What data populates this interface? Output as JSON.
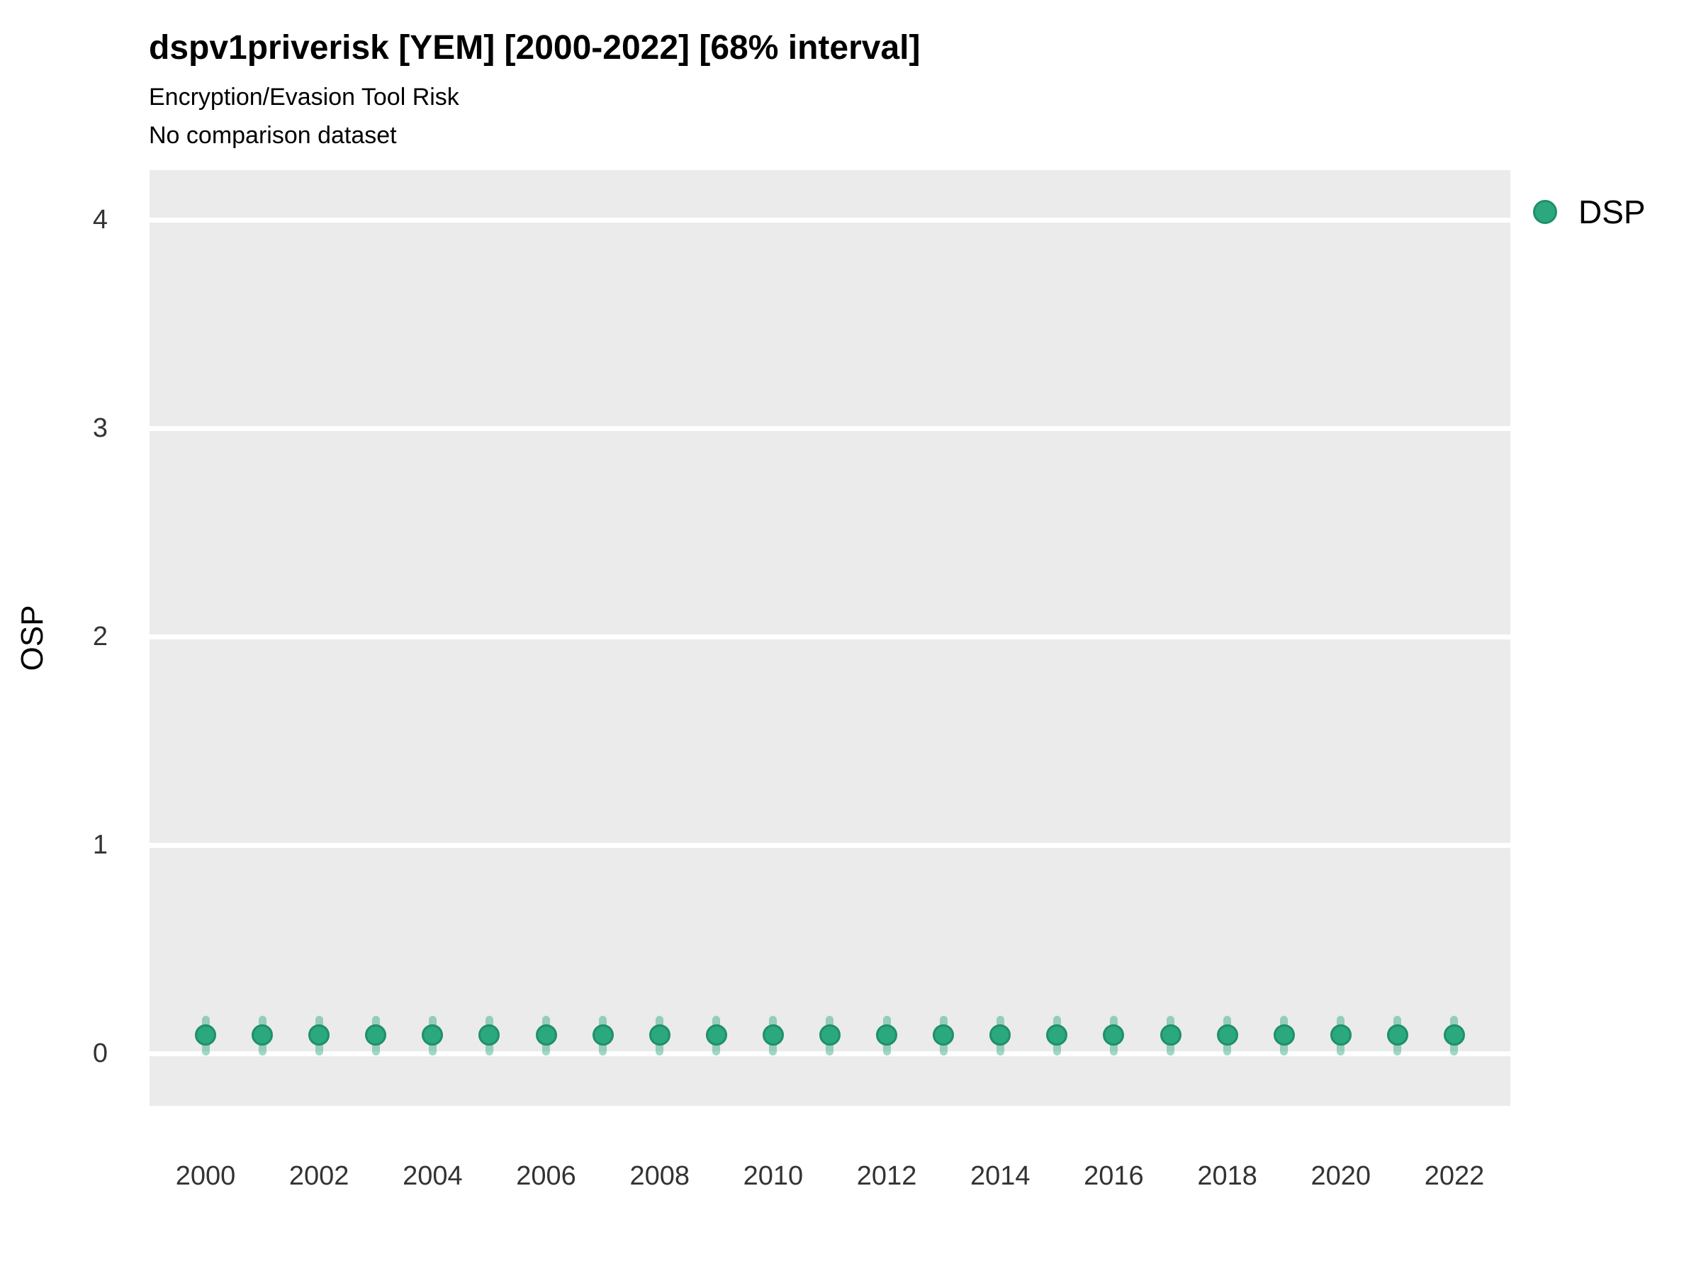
{
  "header": {
    "title": "dspv1priverisk [YEM] [2000-2022] [68% interval]",
    "subtitle": "Encryption/Evasion Tool Risk",
    "note": "No comparison dataset"
  },
  "legend": {
    "items": [
      {
        "label": "DSP",
        "color": "#2BA87E"
      }
    ]
  },
  "colors": {
    "point_fill": "#2BA87E",
    "point_stroke": "#1F9066",
    "interval_fill": "rgba(44,168,126,0.45)",
    "panel_background": "#EBEBEB",
    "gridline": "#FFFFFF",
    "tick_text": "#333333",
    "title_text": "#000000"
  },
  "chart_data": {
    "type": "scatter",
    "title": "dspv1priverisk [YEM] [2000-2022] [68% interval]",
    "subtitle": "Encryption/Evasion Tool Risk",
    "annotation": "No comparison dataset",
    "xlabel": "",
    "ylabel": "OSP",
    "interval_label": "68% interval",
    "grid": "horizontal-major-only",
    "legend_position": "right-top",
    "ylim": [
      -0.25,
      4.25
    ],
    "yticks": [
      0,
      1,
      2,
      3,
      4
    ],
    "xticks": [
      2000,
      2002,
      2004,
      2006,
      2008,
      2010,
      2012,
      2014,
      2016,
      2018,
      2020,
      2022
    ],
    "x": [
      2000,
      2001,
      2002,
      2003,
      2004,
      2005,
      2006,
      2007,
      2008,
      2009,
      2010,
      2011,
      2012,
      2013,
      2014,
      2015,
      2016,
      2017,
      2018,
      2019,
      2020,
      2021,
      2022
    ],
    "series": [
      {
        "name": "DSP",
        "values": [
          0.09,
          0.09,
          0.09,
          0.09,
          0.09,
          0.09,
          0.09,
          0.09,
          0.09,
          0.09,
          0.09,
          0.09,
          0.09,
          0.09,
          0.09,
          0.09,
          0.09,
          0.09,
          0.09,
          0.09,
          0.09,
          0.09,
          0.09
        ],
        "lower": [
          0.01,
          0.01,
          0.01,
          0.01,
          0.01,
          0.01,
          0.01,
          0.01,
          0.01,
          0.01,
          0.01,
          0.01,
          0.01,
          0.01,
          0.01,
          0.01,
          0.01,
          0.01,
          0.01,
          0.01,
          0.01,
          0.01,
          0.01
        ],
        "upper": [
          0.16,
          0.16,
          0.16,
          0.16,
          0.16,
          0.16,
          0.16,
          0.16,
          0.16,
          0.16,
          0.16,
          0.16,
          0.16,
          0.16,
          0.16,
          0.16,
          0.16,
          0.16,
          0.16,
          0.16,
          0.16,
          0.16,
          0.16
        ]
      }
    ]
  }
}
